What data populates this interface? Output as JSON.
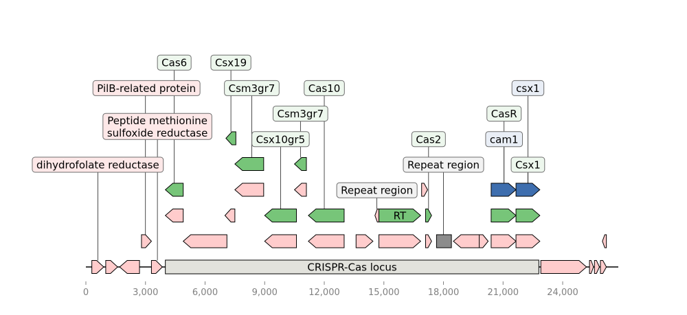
{
  "colors": {
    "pink": "#ffcccc",
    "green": "#77c579",
    "blue": "#3e6eae",
    "gray": "#8c8c8c",
    "locus": "#e2e2dc",
    "label_green_bg": "#edf7ed",
    "label_pink_bg": "#fde8e8",
    "label_gray_bg": "#f2f2f2",
    "label_blue_bg": "#e9eef6",
    "axis_text": "#808080"
  },
  "axis": {
    "min": 0,
    "max": 26800,
    "ticks": [
      {
        "value": 0,
        "label": "0"
      },
      {
        "value": 3000,
        "label": "3,000"
      },
      {
        "value": 6000,
        "label": "6,000"
      },
      {
        "value": 9000,
        "label": "9,000"
      },
      {
        "value": 12000,
        "label": "12,000"
      },
      {
        "value": 15000,
        "label": "15,000"
      },
      {
        "value": 18000,
        "label": "18,000"
      },
      {
        "value": 21000,
        "label": "21,000"
      },
      {
        "value": 24000,
        "label": "24,000"
      }
    ]
  },
  "locus": {
    "label": "CRISPR-Cas locus",
    "start": 4000,
    "end": 22800
  },
  "features": [
    {
      "start": 300,
      "end": 900,
      "strand": 1,
      "level": 0,
      "color": "pink"
    },
    {
      "start": 1000,
      "end": 1600,
      "strand": 1,
      "level": 0,
      "color": "pink"
    },
    {
      "start": 1700,
      "end": 2700,
      "strand": -1,
      "level": 0,
      "color": "pink"
    },
    {
      "start": 3300,
      "end": 3850,
      "strand": 1,
      "level": 0,
      "color": "pink"
    },
    {
      "start": 22900,
      "end": 25200,
      "strand": 1,
      "level": 0,
      "color": "pink"
    },
    {
      "start": 25350,
      "end": 25550,
      "strand": 1,
      "level": 0,
      "color": "pink"
    },
    {
      "start": 25600,
      "end": 25850,
      "strand": 1,
      "level": 0,
      "color": "pink"
    },
    {
      "start": 25900,
      "end": 26200,
      "strand": 1,
      "level": 0,
      "color": "pink"
    },
    {
      "start": 2800,
      "end": 3300,
      "strand": 1,
      "level": 1,
      "color": "pink"
    },
    {
      "start": 4900,
      "end": 7100,
      "strand": -1,
      "level": 1,
      "color": "pink"
    },
    {
      "start": 9000,
      "end": 10600,
      "strand": -1,
      "level": 1,
      "color": "pink"
    },
    {
      "start": 11200,
      "end": 13000,
      "strand": -1,
      "level": 1,
      "color": "pink"
    },
    {
      "start": 13600,
      "end": 14450,
      "strand": 1,
      "level": 1,
      "color": "pink"
    },
    {
      "start": 14750,
      "end": 16850,
      "strand": 1,
      "level": 1,
      "color": "pink"
    },
    {
      "start": 17100,
      "end": 17400,
      "strand": 1,
      "level": 1,
      "color": "pink"
    },
    {
      "start": 17650,
      "end": 18400,
      "strand": 0,
      "level": 1,
      "color": "gray"
    },
    {
      "start": 18500,
      "end": 19850,
      "strand": -1,
      "level": 1,
      "color": "pink"
    },
    {
      "start": 19800,
      "end": 20250,
      "strand": 1,
      "level": 1,
      "color": "pink"
    },
    {
      "start": 20400,
      "end": 21650,
      "strand": 1,
      "level": 1,
      "color": "pink"
    },
    {
      "start": 21650,
      "end": 22850,
      "strand": 1,
      "level": 1,
      "color": "pink"
    },
    {
      "start": 26000,
      "end": 26200,
      "strand": -1,
      "level": 1,
      "color": "pink"
    },
    {
      "start": 4000,
      "end": 4900,
      "strand": -1,
      "level": 2,
      "color": "pink"
    },
    {
      "start": 7000,
      "end": 7500,
      "strand": -1,
      "level": 2,
      "color": "pink"
    },
    {
      "start": 9000,
      "end": 10600,
      "strand": -1,
      "level": 2,
      "color": "green"
    },
    {
      "start": 11200,
      "end": 13000,
      "strand": -1,
      "level": 2,
      "color": "green"
    },
    {
      "start": 14550,
      "end": 14750,
      "strand": -1,
      "level": 2,
      "color": "pink"
    },
    {
      "start": 14750,
      "end": 16850,
      "strand": 1,
      "level": 2,
      "color": "green",
      "label": "RT"
    },
    {
      "start": 17100,
      "end": 17400,
      "strand": 1,
      "level": 2,
      "color": "green"
    },
    {
      "start": 20400,
      "end": 21650,
      "strand": 1,
      "level": 2,
      "color": "green"
    },
    {
      "start": 21650,
      "end": 22850,
      "strand": 1,
      "level": 2,
      "color": "green"
    },
    {
      "start": 4000,
      "end": 4900,
      "strand": -1,
      "level": 3,
      "color": "green"
    },
    {
      "start": 7500,
      "end": 8950,
      "strand": -1,
      "level": 3,
      "color": "pink"
    },
    {
      "start": 10500,
      "end": 11100,
      "strand": -1,
      "level": 3,
      "color": "pink"
    },
    {
      "start": 16900,
      "end": 17200,
      "strand": 1,
      "level": 3,
      "color": "pink"
    },
    {
      "start": 20400,
      "end": 21650,
      "strand": 1,
      "level": 3,
      "color": "blue"
    },
    {
      "start": 21650,
      "end": 22850,
      "strand": 1,
      "level": 3,
      "color": "blue"
    },
    {
      "start": 7500,
      "end": 8950,
      "strand": -1,
      "level": 4,
      "color": "green"
    },
    {
      "start": 10500,
      "end": 11100,
      "strand": -1,
      "level": 4,
      "color": "green"
    },
    {
      "start": 7050,
      "end": 7550,
      "strand": -1,
      "level": 5,
      "color": "green"
    }
  ],
  "labels": [
    {
      "text": "Cas6",
      "anchor": 4450,
      "cx": 4450,
      "row": 0,
      "fill": "label_green_bg"
    },
    {
      "text": "Csx19",
      "anchor": 7300,
      "cx": 7300,
      "row": 0,
      "fill": "label_green_bg"
    },
    {
      "text": "PilB-related protein",
      "anchor": 3000,
      "cx": 3050,
      "row": 1,
      "fill": "label_pink_bg"
    },
    {
      "text": "Csm3gr7",
      "anchor": 8350,
      "cx": 8350,
      "row": 1,
      "fill": "label_green_bg"
    },
    {
      "text": "Cas10",
      "anchor": 12000,
      "cx": 12000,
      "row": 1,
      "fill": "label_green_bg"
    },
    {
      "text": "csx1",
      "anchor": 22250,
      "cx": 22250,
      "row": 1,
      "fill": "label_blue_bg"
    },
    {
      "text": "Peptide methionine",
      "text2": "sulfoxide reductase",
      "anchor": 3600,
      "cx": 3600,
      "row": 2.5,
      "fill": "label_pink_bg"
    },
    {
      "text": "Csm3gr7",
      "anchor": 10800,
      "cx": 10800,
      "row": 2,
      "fill": "label_green_bg"
    },
    {
      "text": "CasR",
      "anchor": 21050,
      "cx": 21050,
      "row": 2,
      "fill": "label_green_bg"
    },
    {
      "text": "Csx10gr5",
      "anchor": 9800,
      "cx": 9800,
      "row": 3,
      "fill": "label_green_bg"
    },
    {
      "text": "Cas2",
      "anchor": 17250,
      "cx": 17250,
      "row": 3,
      "fill": "label_green_bg"
    },
    {
      "text": "cam1",
      "anchor": 21050,
      "cx": 21050,
      "row": 3,
      "fill": "label_blue_bg"
    },
    {
      "text": "dihydrofolate reductase",
      "anchor": 600,
      "cx": 600,
      "row": 4,
      "fill": "label_pink_bg"
    },
    {
      "text": "Repeat region",
      "anchor": 18000,
      "cx": 18000,
      "row": 4,
      "fill": "label_gray_bg"
    },
    {
      "text": "Csx1",
      "anchor": 22250,
      "cx": 22250,
      "row": 4,
      "fill": "label_green_bg"
    },
    {
      "text": "Repeat region",
      "anchor": 14650,
      "cx": 14650,
      "row": 5,
      "fill": "label_gray_bg"
    }
  ]
}
